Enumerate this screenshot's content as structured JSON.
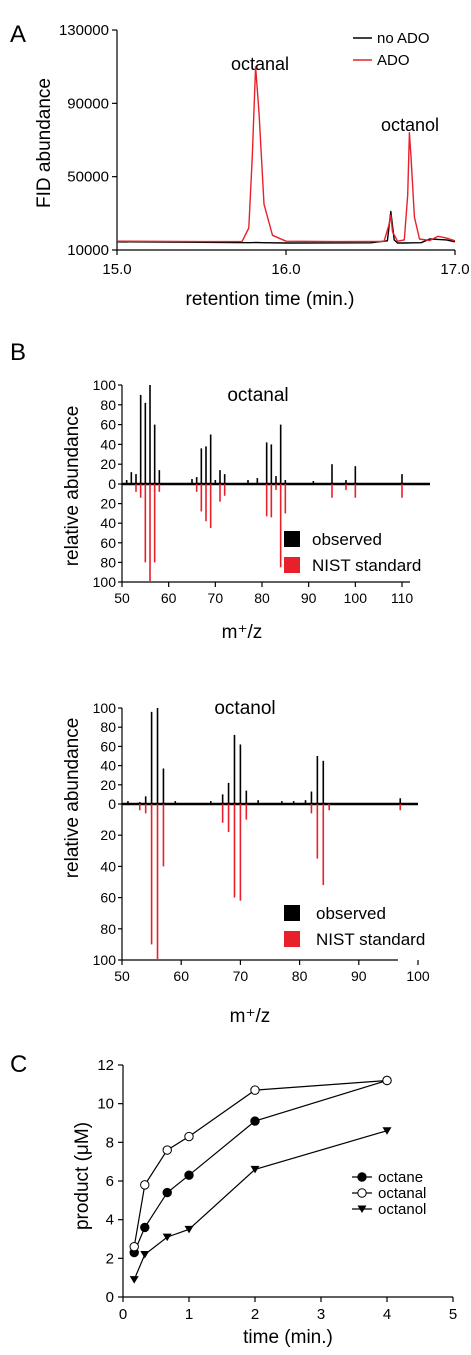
{
  "panels": [
    {
      "label": "A"
    },
    {
      "label": "B"
    },
    {
      "label": "C"
    }
  ],
  "colors": {
    "black": "#000000",
    "red": "#e8202a"
  },
  "chart_data": [
    {
      "id": "A",
      "type": "line",
      "xlabel": "retention time (min.)",
      "ylabel": "FID abundance",
      "xlim": [
        15.0,
        17.0
      ],
      "ylim": [
        10000,
        130000
      ],
      "xticks": [
        "15.0",
        "16.0",
        "17.0"
      ],
      "xtick_values": [
        15.0,
        16.0,
        17.0
      ],
      "yticks": [
        "10000",
        "50000",
        "90000",
        "130000"
      ],
      "ytick_values": [
        10000,
        50000,
        90000,
        130000
      ],
      "legend": {
        "position": "top-right"
      },
      "annotations": [
        {
          "text": "octanal",
          "x": 15.82,
          "y": 114000
        },
        {
          "text": "octanol",
          "x": 16.72,
          "y": 77000
        }
      ],
      "series": [
        {
          "name": "no ADO",
          "color": "#000000",
          "x": [
            15.0,
            15.5,
            15.78,
            15.82,
            15.86,
            16.0,
            16.5,
            16.6,
            16.62,
            16.64,
            16.66,
            16.7,
            16.75,
            16.8,
            16.85,
            16.9,
            16.95,
            17.0
          ],
          "y": [
            14500,
            14200,
            14000,
            14100,
            14000,
            13800,
            13900,
            15000,
            31000,
            15500,
            13800,
            13800,
            13900,
            14000,
            16000,
            15800,
            15500,
            14500
          ]
        },
        {
          "name": "ADO",
          "color": "#e8202a",
          "x": [
            15.0,
            15.5,
            15.74,
            15.78,
            15.8,
            15.82,
            15.84,
            15.87,
            15.92,
            16.0,
            16.3,
            16.58,
            16.61,
            16.62,
            16.63,
            16.66,
            16.7,
            16.72,
            16.73,
            16.74,
            16.76,
            16.79,
            16.85,
            16.9,
            16.95,
            17.0
          ],
          "y": [
            14800,
            14600,
            14700,
            22000,
            60000,
            110000,
            85000,
            35000,
            18000,
            14800,
            14600,
            14700,
            24000,
            29000,
            20000,
            14800,
            15500,
            40000,
            74000,
            60000,
            28000,
            16000,
            15200,
            17500,
            16500,
            15000
          ]
        }
      ]
    },
    {
      "id": "B-octanal",
      "type": "bar",
      "title": "octanal",
      "xlabel": "m⁺/z",
      "ylabel": "relative abundance",
      "xlim": [
        50,
        116
      ],
      "xticks": [
        "50",
        "60",
        "70",
        "80",
        "90",
        "100",
        "110"
      ],
      "xtick_values": [
        50,
        60,
        70,
        80,
        90,
        100,
        110
      ],
      "yticks_up": [
        "100",
        "80",
        "60",
        "40",
        "20",
        "0"
      ],
      "yticks_down": [
        "20",
        "40",
        "60",
        "80",
        "100"
      ],
      "ytick_values_up": [
        100,
        80,
        60,
        40,
        20,
        0
      ],
      "ytick_values_down": [
        20,
        40,
        60,
        80,
        100
      ],
      "legend": {
        "position": "bottom-right",
        "entries": [
          "observed",
          "NIST standard"
        ]
      },
      "series": [
        {
          "name": "observed",
          "color": "#000000",
          "x": [
            51,
            52,
            53,
            54,
            55,
            56,
            57,
            58,
            65,
            66,
            67,
            68,
            69,
            70,
            71,
            72,
            77,
            79,
            81,
            82,
            83,
            84,
            85,
            91,
            95,
            98,
            100,
            110
          ],
          "y": [
            4,
            12,
            10,
            90,
            82,
            100,
            60,
            14,
            5,
            7,
            36,
            38,
            50,
            4,
            14,
            10,
            4,
            6,
            42,
            40,
            8,
            60,
            4,
            3,
            20,
            4,
            18,
            10
          ]
        },
        {
          "name": "NIST standard",
          "color": "#e8202a",
          "x": [
            53,
            54,
            55,
            56,
            57,
            58,
            66,
            67,
            68,
            69,
            71,
            72,
            81,
            82,
            83,
            84,
            85,
            95,
            98,
            100,
            110
          ],
          "y": [
            8,
            14,
            80,
            100,
            80,
            8,
            8,
            28,
            38,
            45,
            18,
            12,
            33,
            34,
            6,
            85,
            30,
            14,
            6,
            14,
            14
          ]
        }
      ]
    },
    {
      "id": "B-octanol",
      "type": "bar",
      "title": "octanol",
      "xlabel": "m⁺/z",
      "ylabel": "relative abundance",
      "xlim": [
        50,
        100
      ],
      "xticks": [
        "50",
        "60",
        "70",
        "80",
        "90",
        "100"
      ],
      "xtick_values": [
        50,
        60,
        70,
        80,
        90,
        100
      ],
      "yticks_up": [
        "100",
        "80",
        "60",
        "40",
        "20",
        "0"
      ],
      "yticks_down": [
        "20",
        "40",
        "60",
        "80",
        "100"
      ],
      "ytick_values_up": [
        100,
        80,
        60,
        40,
        20,
        0
      ],
      "ytick_values_down": [
        20,
        40,
        60,
        80,
        100
      ],
      "legend": {
        "position": "bottom-right",
        "entries": [
          "observed",
          "NIST standard"
        ]
      },
      "series": [
        {
          "name": "observed",
          "color": "#000000",
          "x": [
            51,
            53,
            54,
            55,
            56,
            57,
            59,
            65,
            67,
            68,
            69,
            70,
            71,
            73,
            77,
            79,
            81,
            82,
            83,
            84,
            97
          ],
          "y": [
            3,
            2,
            8,
            96,
            100,
            37,
            3,
            3,
            10,
            22,
            72,
            62,
            14,
            4,
            3,
            3,
            4,
            13,
            50,
            45,
            6
          ]
        },
        {
          "name": "NIST standard",
          "color": "#e8202a",
          "x": [
            53,
            54,
            55,
            56,
            57,
            67,
            68,
            69,
            70,
            71,
            82,
            83,
            84,
            85,
            97
          ],
          "y": [
            4,
            6,
            90,
            100,
            40,
            12,
            18,
            60,
            62,
            10,
            6,
            35,
            52,
            4,
            4
          ]
        }
      ]
    },
    {
      "id": "C",
      "type": "line",
      "xlabel": "time (min.)",
      "ylabel": "product (μM)",
      "xlim": [
        0,
        5
      ],
      "ylim": [
        0,
        12
      ],
      "xticks": [
        "0",
        "1",
        "2",
        "3",
        "4",
        "5"
      ],
      "xtick_values": [
        0,
        1,
        2,
        3,
        4,
        5
      ],
      "yticks": [
        "0",
        "2",
        "4",
        "6",
        "8",
        "10",
        "12"
      ],
      "ytick_values": [
        0,
        2,
        4,
        6,
        8,
        10,
        12
      ],
      "legend": {
        "position": "center-right"
      },
      "series": [
        {
          "name": "octane",
          "marker": "filled-circle",
          "x": [
            0.17,
            0.33,
            0.67,
            1.0,
            2.0,
            4.0
          ],
          "y": [
            2.3,
            3.6,
            5.4,
            6.3,
            9.1,
            11.2
          ]
        },
        {
          "name": "octanal",
          "marker": "open-circle",
          "x": [
            0.17,
            0.33,
            0.67,
            1.0,
            2.0,
            4.0
          ],
          "y": [
            2.6,
            5.8,
            7.6,
            8.3,
            10.7,
            11.2
          ]
        },
        {
          "name": "octanol",
          "marker": "filled-triangle-down",
          "x": [
            0.17,
            0.33,
            0.67,
            1.0,
            2.0,
            4.0
          ],
          "y": [
            0.9,
            2.2,
            3.1,
            3.5,
            6.6,
            8.6
          ]
        }
      ]
    }
  ]
}
